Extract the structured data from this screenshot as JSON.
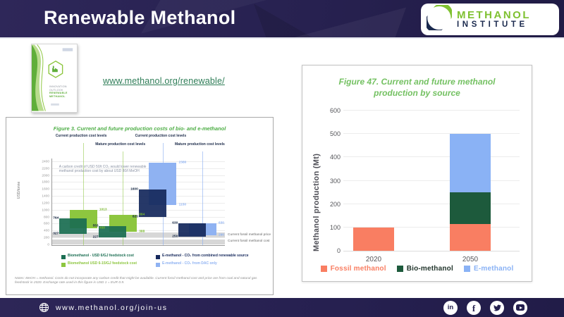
{
  "header": {
    "title": "Renewable Methanol",
    "logo": {
      "line1": "METHANOL",
      "line2": "INSTITUTE"
    }
  },
  "resource": {
    "link": "www.methanol.org/renewable/",
    "brochure": {
      "line1": "INNOVATION OUTLOOK",
      "line2": "RENEWABLE METHANOL"
    }
  },
  "chart_data": [
    {
      "type": "bar",
      "variant": "floating-range",
      "title": "Figure 3. Current and future production costs of bio- and e-methanol",
      "ylabel": "USD/tonne",
      "ylim": [
        0,
        2400
      ],
      "yticks": [
        0,
        200,
        400,
        600,
        800,
        1000,
        1200,
        1400,
        1600,
        1800,
        2000,
        2200,
        2400
      ],
      "annotation": "A carbon credit of USD 50/t CO₂ would lower renewable methanol production cost by about USD 80/t MeOH",
      "series": [
        {
          "name": "Biomethanol - USD 6/GJ feedstock cost",
          "color": "#1b6e52",
          "label_color": "#10223f"
        },
        {
          "name": "Biomethanol USD 6-15/GJ feedstock cost",
          "color": "#8dc63f",
          "label_color": "#7ab82e"
        },
        {
          "name": "E-methanol - CO₂ from combined renewable source",
          "color": "#16295c",
          "label_color": "#10223f"
        },
        {
          "name": "E-methanol - CO₂ from DAC only",
          "color": "#8fb2f2",
          "label_color": "#8fb2f2"
        }
      ],
      "groups": [
        {
          "header": "Current production cost levels",
          "header_row": 0,
          "x": 4,
          "front_series": 0,
          "back_series": 1,
          "front": {
            "low": 327,
            "high": 764
          },
          "back": {
            "low": 488,
            "high": 1013
          }
        },
        {
          "header": "Mature production cost levels",
          "header_row": 1,
          "x": 27,
          "front_series": 0,
          "back_series": 1,
          "front": {
            "low": 227,
            "high": 553
          },
          "back": {
            "low": 388,
            "high": 884
          }
        },
        {
          "header": "Current production cost levels",
          "header_row": 0,
          "x": 50,
          "front_series": 2,
          "back_series": 3,
          "front": {
            "low": 820,
            "high": 1600
          },
          "back": {
            "low": 1150,
            "high": 2380
          }
        },
        {
          "header": "Mature production cost levels",
          "header_row": 1,
          "x": 73,
          "front_series": 2,
          "back_series": 3,
          "front": {
            "low": 250,
            "high": 630
          },
          "back": {
            "low": 290,
            "high": 630
          }
        }
      ],
      "bands": [
        {
          "label": "Current fossil methanol price",
          "low": 215,
          "high": 370
        },
        {
          "label": "Current fossil methanol cost",
          "low": 15,
          "high": 170
        }
      ],
      "notes": "Notes: MeOH = methanol. Costs do not incorporate any carbon credit that might be available. Current fossil methanol cost and price are from coal and natural gas feedstock in 2020. Exchange rate used in this figure is USD 1 = EUR 0.9."
    },
    {
      "type": "bar",
      "variant": "stacked",
      "title": "Figure 47. Current and future methanol production by source",
      "ylabel": "Methanol production (Mt)",
      "ylim": [
        0,
        600
      ],
      "yticks": [
        0,
        100,
        200,
        300,
        400,
        500,
        600
      ],
      "grid": true,
      "legend_position": "bottom",
      "categories": [
        "2020",
        "2050"
      ],
      "series": [
        {
          "name": "Fossil methanol",
          "values": [
            100,
            115
          ],
          "color": "#f97e62"
        },
        {
          "name": "Bio-methanol",
          "values": [
            0,
            135
          ],
          "color": "#1d5a3c",
          "legend_text_color": "#22352c"
        },
        {
          "name": "E-methanol",
          "values": [
            0,
            250
          ],
          "color": "#8ab2f5"
        }
      ]
    }
  ],
  "footer": {
    "url": "www.methanol.org/join-us",
    "socials": [
      "linkedin",
      "facebook",
      "twitter",
      "youtube"
    ]
  },
  "colors": {
    "navy": "#262050",
    "accent_green": "#7fc131"
  }
}
